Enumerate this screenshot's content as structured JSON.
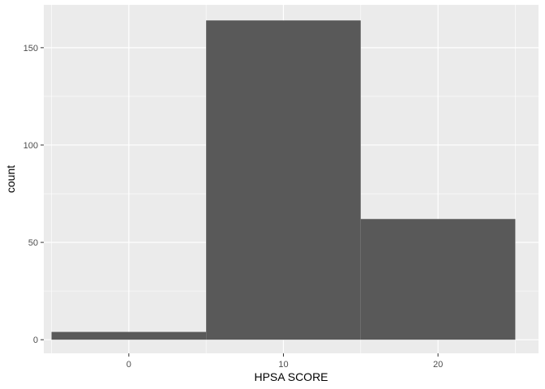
{
  "chart_data": {
    "type": "bar",
    "bins": [
      {
        "x_start": -5,
        "x_end": 5,
        "count": 4
      },
      {
        "x_start": 5,
        "x_end": 15,
        "count": 164
      },
      {
        "x_start": 15,
        "x_end": 25,
        "count": 62
      }
    ],
    "xlabel": "HPSA SCORE",
    "ylabel": "count",
    "xlim": [
      -5.5,
      26.5
    ],
    "ylim": [
      -7,
      172
    ],
    "x_ticks": [
      0,
      10,
      20
    ],
    "x_tick_labels": [
      "0",
      "10",
      "20"
    ],
    "y_ticks": [
      0,
      50,
      100,
      150
    ],
    "y_tick_labels": [
      "0",
      "50",
      "100",
      "150"
    ],
    "x_minor_ticks": [
      -5,
      5,
      15,
      25
    ],
    "y_minor_ticks": [
      25,
      75,
      125
    ],
    "grid": true,
    "panel_background": "#ebebeb",
    "grid_color": "#ffffff",
    "bar_color": "#595959"
  }
}
